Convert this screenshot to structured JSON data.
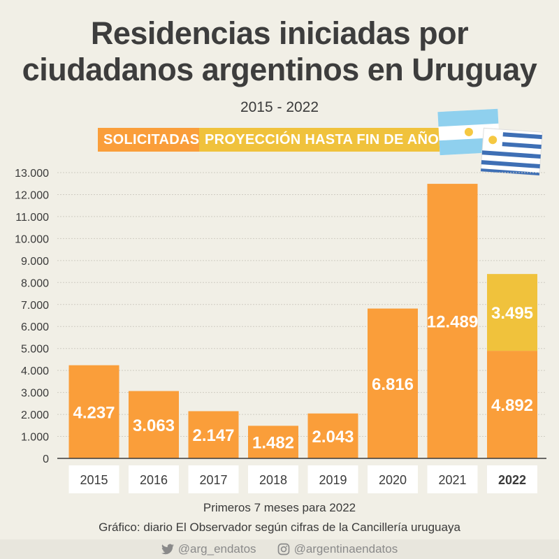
{
  "title_line1": "Residencias iniciadas por",
  "title_line2": "ciudadanos argentinos en Uruguay",
  "subtitle": "2015 - 2022",
  "legend": {
    "solicitadas": "SOLICITADAS",
    "proyeccion": "PROYECCIÓN HASTA FIN DE AÑO"
  },
  "colors": {
    "solicitadas": "#fa9e3a",
    "proyeccion": "#f0c23c",
    "background": "#f1efe6"
  },
  "icons": [
    "argentina-flag-icon",
    "uruguay-flag-icon",
    "twitter-icon",
    "instagram-icon"
  ],
  "chart_data": {
    "type": "bar",
    "stacked": true,
    "categories": [
      "2015",
      "2016",
      "2017",
      "2018",
      "2019",
      "2020",
      "2021",
      "2022"
    ],
    "highlight_category": "2022",
    "series": [
      {
        "name": "SOLICITADAS",
        "values": [
          4237,
          3063,
          2147,
          1482,
          2043,
          6816,
          12489,
          4892
        ]
      },
      {
        "name": "PROYECCIÓN HASTA FIN DE AÑO",
        "values": [
          0,
          0,
          0,
          0,
          0,
          0,
          0,
          3495
        ]
      }
    ],
    "data_labels": [
      [
        "4.237",
        "3.063",
        "2.147",
        "1.482",
        "2.043",
        "6.816",
        "12.489",
        "4.892"
      ],
      [
        "",
        "",
        "",
        "",
        "",
        "",
        "",
        "3.495"
      ]
    ],
    "ylim": [
      0,
      13000
    ],
    "yticks": [
      0,
      1000,
      2000,
      3000,
      4000,
      5000,
      6000,
      7000,
      8000,
      9000,
      10000,
      11000,
      12000,
      13000
    ],
    "ytick_labels": [
      "0",
      "1.000",
      "2.000",
      "3.000",
      "4.000",
      "5.000",
      "6.000",
      "7.000",
      "8.000",
      "9.000",
      "10.000",
      "11.000",
      "12.000",
      "13.000"
    ],
    "grid": true
  },
  "footnote": "Primeros 7 meses para 2022",
  "source": "Gráfico: diario El Observador según cifras de la Cancillería uruguaya",
  "footer": {
    "twitter": "@arg_endatos",
    "instagram": "@argentinaendatos"
  }
}
